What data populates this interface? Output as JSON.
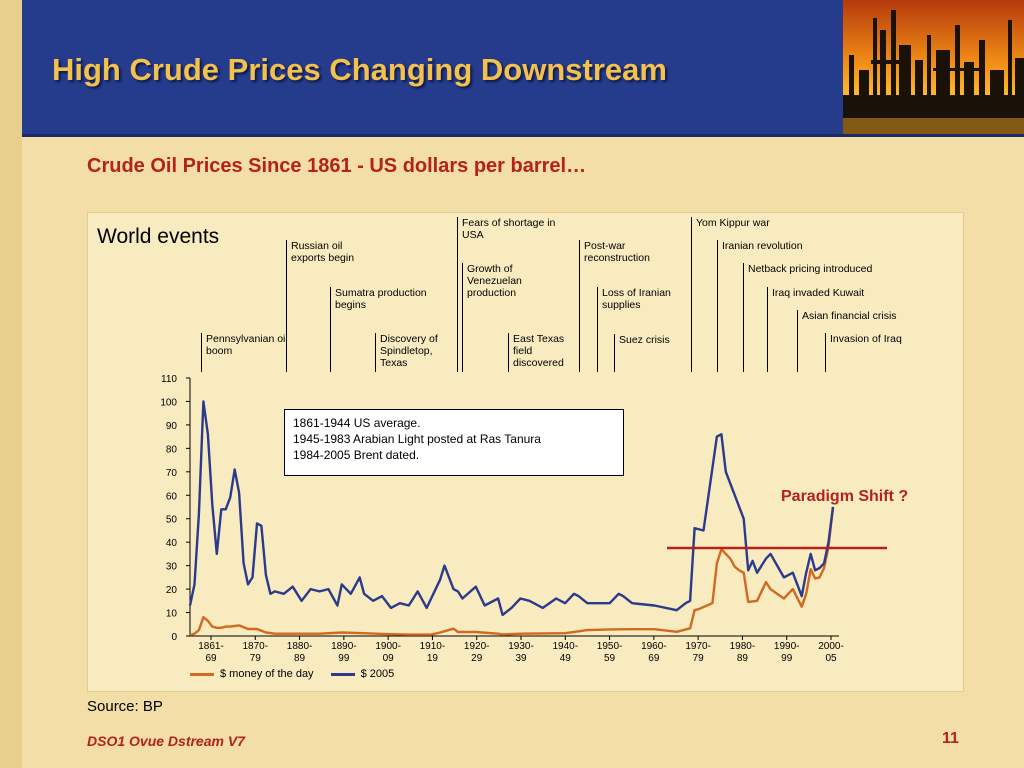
{
  "title": "High Crude Prices Changing Downstream",
  "subtitle": "Crude Oil Prices Since 1861 - US dollars per barrel…",
  "events_heading": "World events",
  "events": [
    "Pennsylvanian oil boom",
    "Russian oil exports begin",
    "Sumatra production begins",
    "Discovery of Spindletop, Texas",
    "Fears of shortage in USA",
    "Growth of Venezuelan production",
    "East Texas field discovered",
    "Post-war reconstruction",
    "Loss of Iranian supplies",
    "Suez crisis",
    "Yom Kippur war",
    "Iranian revolution",
    "Netback pricing introduced",
    "Iraq invaded Kuwait",
    "Asian financial crisis",
    "Invasion of Iraq"
  ],
  "note_lines": [
    "1861-1944 US average.",
    "1945-1983 Arabian Light posted at Ras Tanura",
    "1984-2005 Brent dated."
  ],
  "paradigm_label": "Paradigm Shift ?",
  "source": "Source: BP",
  "footer": "DSO1 Ovue Dstream V7",
  "page_number": "11",
  "colors": {
    "header": "#253B8C",
    "title": "#F4C14C",
    "accent_red": "#B3221C",
    "money": "#D2691E",
    "dollars_2005": "#2B3A8C"
  },
  "chart_data": {
    "type": "line",
    "xlabel": "",
    "ylabel": "",
    "ylim": [
      0,
      110
    ],
    "yticks": [
      "0",
      "10",
      "20",
      "30",
      "40",
      "50",
      "60",
      "70",
      "80",
      "90",
      "100",
      "110"
    ],
    "xlim": [
      1861,
      2005
    ],
    "xtick_labels": [
      [
        "1861-",
        "69"
      ],
      [
        "1870-",
        "79"
      ],
      [
        "1880-",
        "89"
      ],
      [
        "1890-",
        "99"
      ],
      [
        "1900-",
        "09"
      ],
      [
        "1910-",
        "19"
      ],
      [
        "1920-",
        "29"
      ],
      [
        "1930-",
        "39"
      ],
      [
        "1940-",
        "49"
      ],
      [
        "1950-",
        "59"
      ],
      [
        "1960-",
        "69"
      ],
      [
        "1970-",
        "79"
      ],
      [
        "1980-",
        "89"
      ],
      [
        "1990-",
        "99"
      ],
      [
        "2000-",
        "05"
      ]
    ],
    "series": [
      {
        "name": "$ money of the day",
        "color": "#D2691E",
        "x": [
          1861,
          1862,
          1863,
          1864,
          1865,
          1866,
          1867,
          1868,
          1869,
          1870,
          1872,
          1874,
          1876,
          1878,
          1880,
          1885,
          1890,
          1895,
          1900,
          1905,
          1910,
          1915,
          1917,
          1920,
          1921,
          1925,
          1930,
          1931,
          1935,
          1940,
          1945,
          1950,
          1955,
          1960,
          1965,
          1970,
          1973,
          1974,
          1975,
          1978,
          1979,
          1980,
          1981,
          1982,
          1983,
          1984,
          1985,
          1986,
          1988,
          1990,
          1991,
          1994,
          1996,
          1998,
          1999,
          2000,
          2001,
          2002,
          2003,
          2004,
          2005
        ],
        "y": [
          0.5,
          1,
          2.5,
          8,
          6.5,
          4,
          3.5,
          3.5,
          4,
          4,
          4.5,
          3,
          3,
          1.5,
          1,
          1,
          1,
          1.5,
          1.2,
          0.8,
          0.6,
          0.6,
          1.5,
          3.1,
          1.7,
          1.7,
          1,
          0.65,
          1,
          1.1,
          1.2,
          2.5,
          2.8,
          2.9,
          2.9,
          1.8,
          3.3,
          11,
          11.5,
          14,
          31,
          37,
          35,
          33,
          29.5,
          28,
          27,
          14.5,
          15,
          23,
          20,
          16,
          20,
          12.5,
          18,
          28.5,
          24.5,
          25,
          29,
          38,
          55
        ]
      },
      {
        "name": "$ 2005",
        "color": "#2B3A8C",
        "x": [
          1861,
          1862,
          1863,
          1864,
          1865,
          1866,
          1867,
          1868,
          1869,
          1870,
          1871,
          1872,
          1873,
          1874,
          1875,
          1876,
          1877,
          1878,
          1879,
          1880,
          1882,
          1884,
          1886,
          1888,
          1890,
          1892,
          1894,
          1895,
          1897,
          1899,
          1900,
          1902,
          1904,
          1906,
          1908,
          1910,
          1912,
          1914,
          1917,
          1918,
          1920,
          1921,
          1922,
          1925,
          1927,
          1930,
          1931,
          1933,
          1935,
          1937,
          1940,
          1943,
          1945,
          1947,
          1948,
          1950,
          1955,
          1957,
          1958,
          1960,
          1965,
          1970,
          1972,
          1973,
          1974,
          1976,
          1979,
          1980,
          1981,
          1983,
          1985,
          1986,
          1987,
          1988,
          1990,
          1991,
          1994,
          1996,
          1998,
          1999,
          2000,
          2001,
          2002,
          2003,
          2004,
          2005
        ],
        "y": [
          13,
          22,
          52,
          100,
          86,
          56,
          35,
          54,
          54,
          59,
          71,
          61,
          31,
          22,
          25,
          48,
          47,
          26,
          18,
          19,
          18,
          21,
          15,
          20,
          19,
          20,
          13,
          22,
          18,
          25,
          18,
          15,
          17,
          12,
          14,
          13,
          19,
          12,
          24,
          30,
          20,
          19,
          16,
          21,
          13,
          16,
          9,
          12,
          16,
          15,
          12,
          16,
          14,
          18,
          17,
          14,
          14,
          18,
          17,
          14,
          13,
          11,
          14,
          15,
          46,
          45,
          85,
          86,
          70,
          60,
          50,
          28,
          32,
          27,
          33,
          35,
          25,
          27,
          17,
          27,
          35,
          28,
          29,
          31,
          40,
          55
        ]
      }
    ]
  }
}
